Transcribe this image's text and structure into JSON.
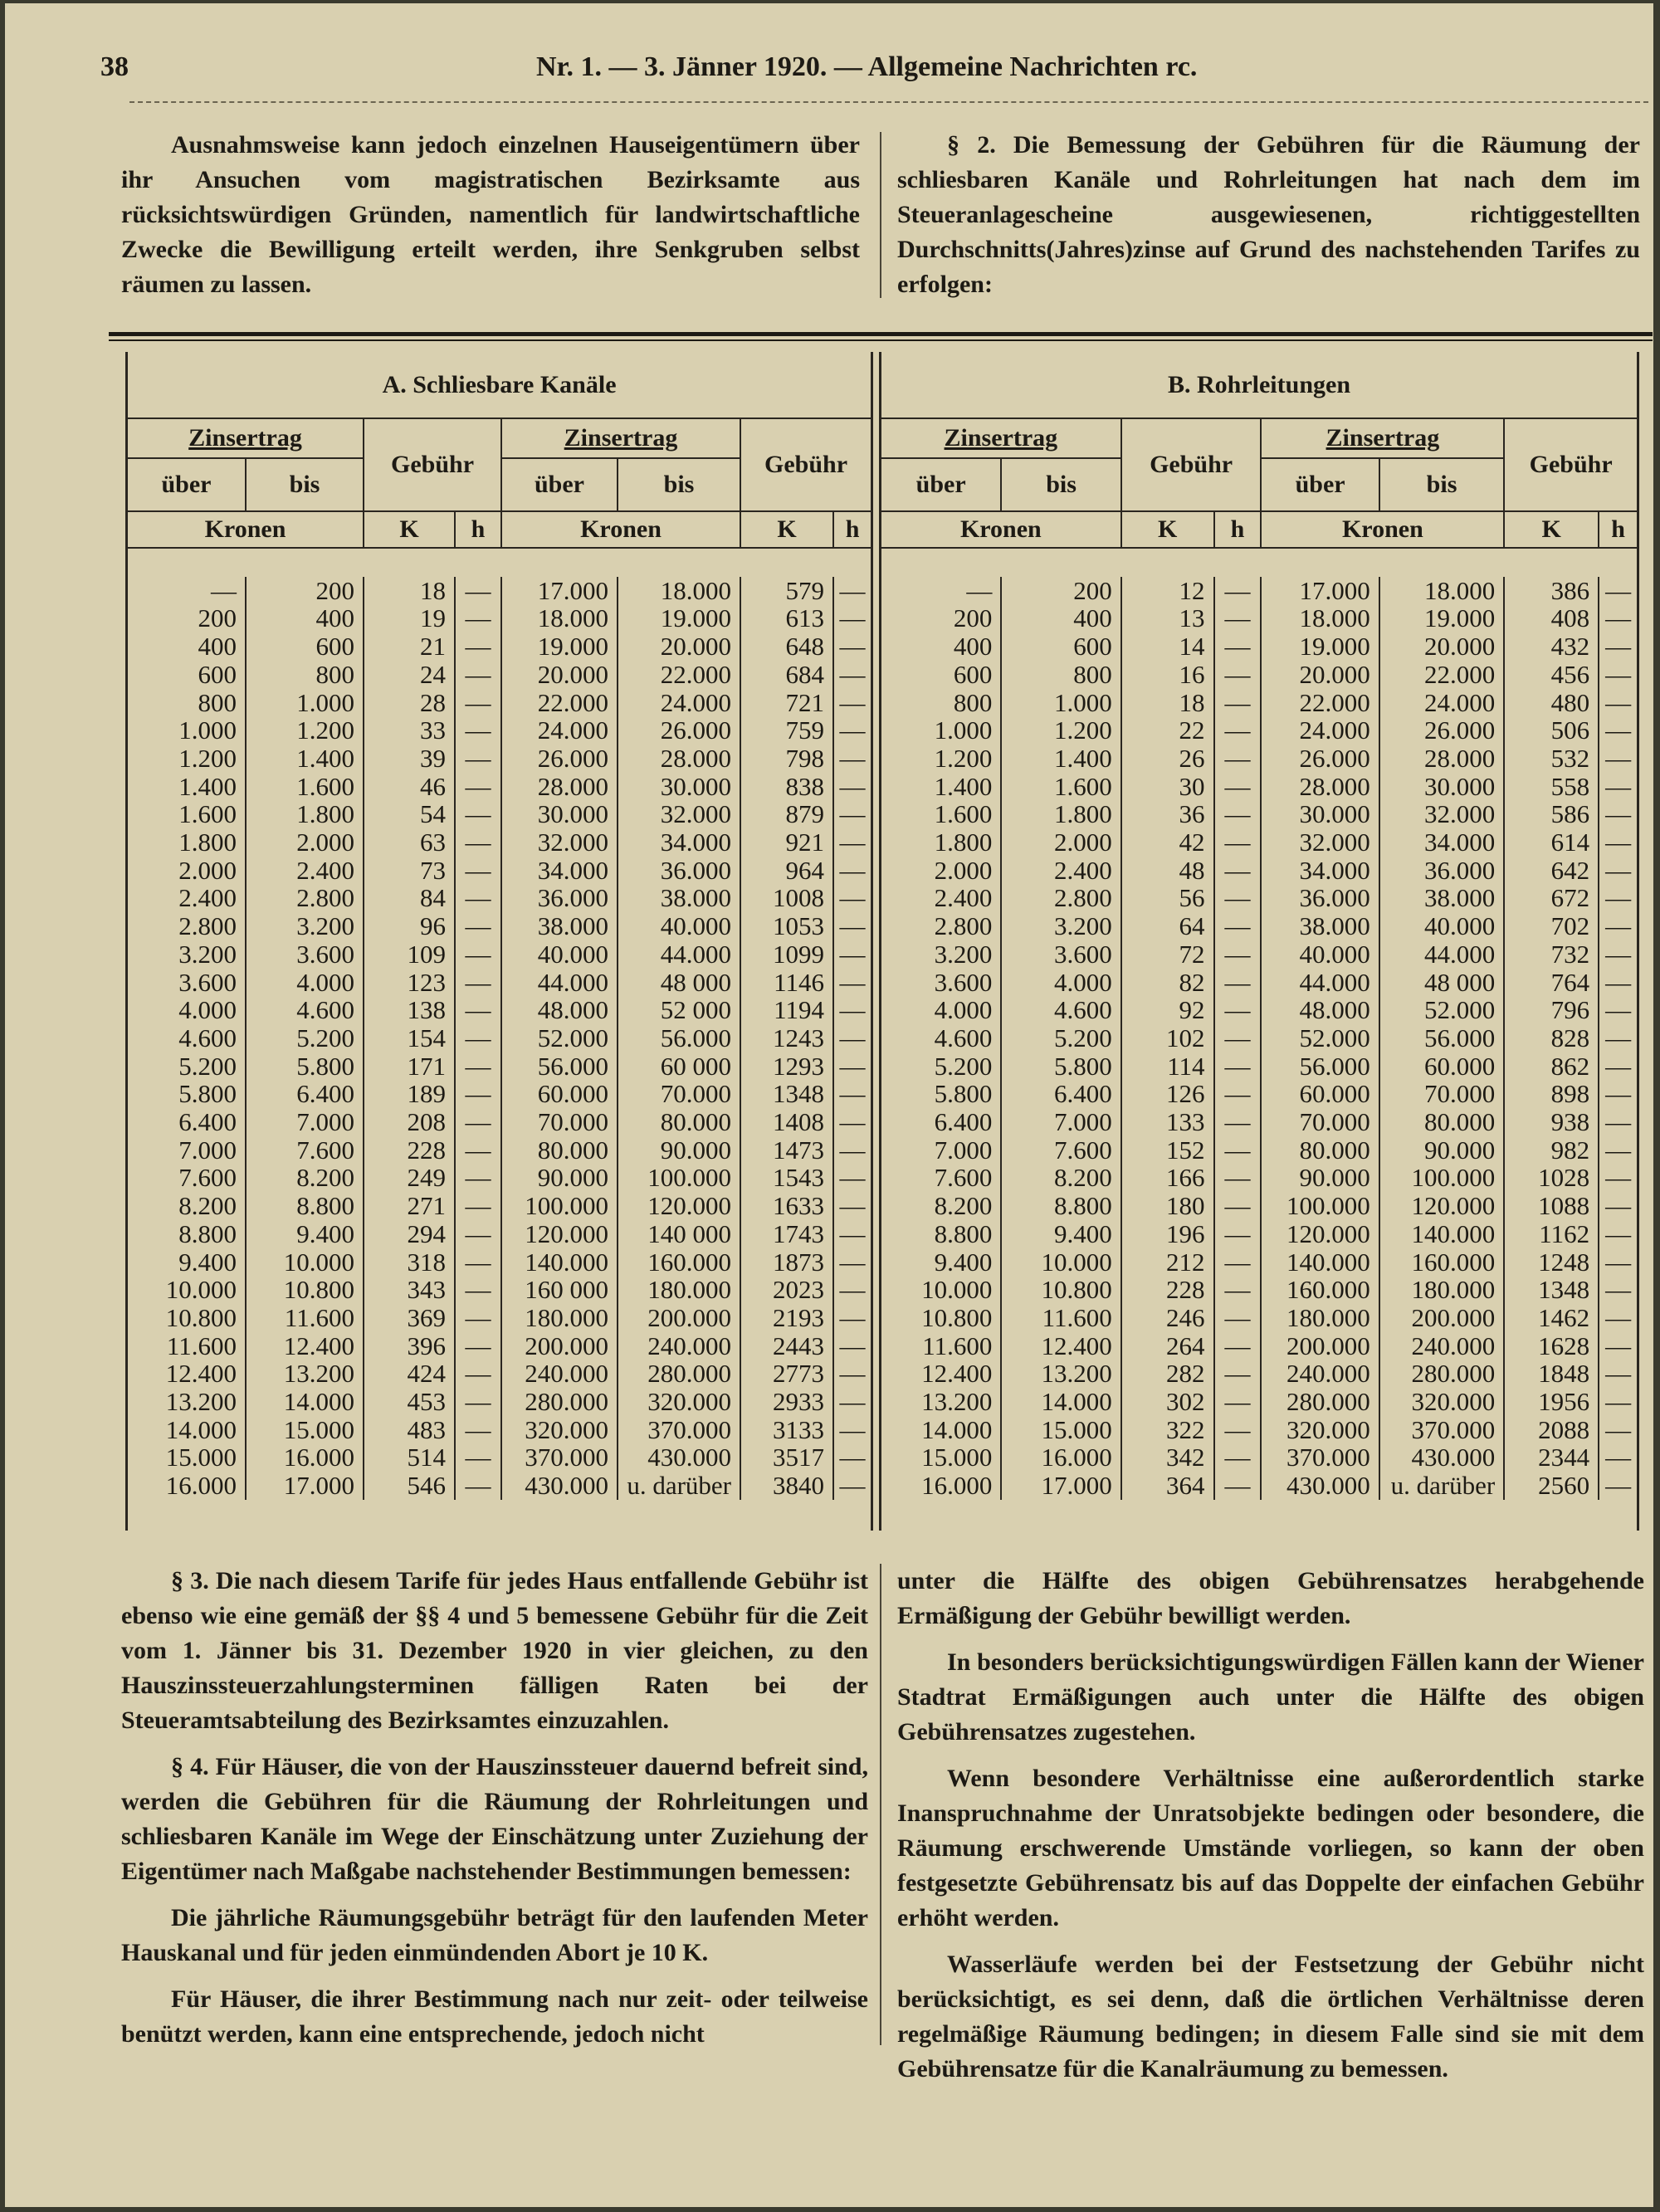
{
  "header": {
    "page": "38",
    "title": "Nr. 1. — 3. Jänner 1920. — Allgemeine Nachrichten rc."
  },
  "intro": {
    "left": "Ausnahmsweise kann jedoch einzelnen Hauseigentümern über ihr Ansuchen vom magistratischen Bezirksamte aus rücksichtswürdigen Gründen, namentlich für landwirtschaftliche Zwecke die Bewilligung erteilt werden, ihre Senkgruben selbst räumen zu lassen.",
    "right": "§ 2. Die Bemessung der Gebühren für die Räumung der schliesbaren Kanäle und Rohrleitungen hat nach dem im Steueranlagescheine ausgewiesenen, richtiggestellten Durchschnitts(Jahres)zinse auf Grund des nachstehenden Tarifes zu erfolgen:"
  },
  "tables": [
    {
      "title": "A. Schliesbare Kanäle",
      "income": "Zinsertrag",
      "fee": "Gebühr",
      "from": "über",
      "to": "bis",
      "currency": "Kronen",
      "k": "K",
      "h": "h",
      "rows": [
        [
          "—",
          "200",
          "18",
          "—",
          "17.000",
          "18.000",
          "579",
          "—"
        ],
        [
          "200",
          "400",
          "19",
          "—",
          "18.000",
          "19.000",
          "613",
          "—"
        ],
        [
          "400",
          "600",
          "21",
          "—",
          "19.000",
          "20.000",
          "648",
          "—"
        ],
        [
          "600",
          "800",
          "24",
          "—",
          "20.000",
          "22.000",
          "684",
          "—"
        ],
        [
          "800",
          "1.000",
          "28",
          "—",
          "22.000",
          "24.000",
          "721",
          "—"
        ],
        [
          "1.000",
          "1.200",
          "33",
          "—",
          "24.000",
          "26.000",
          "759",
          "—"
        ],
        [
          "1.200",
          "1.400",
          "39",
          "—",
          "26.000",
          "28.000",
          "798",
          "—"
        ],
        [
          "1.400",
          "1.600",
          "46",
          "—",
          "28.000",
          "30.000",
          "838",
          "—"
        ],
        [
          "1.600",
          "1.800",
          "54",
          "—",
          "30.000",
          "32.000",
          "879",
          "—"
        ],
        [
          "1.800",
          "2.000",
          "63",
          "—",
          "32.000",
          "34.000",
          "921",
          "—"
        ],
        [
          "2.000",
          "2.400",
          "73",
          "—",
          "34.000",
          "36.000",
          "964",
          "—"
        ],
        [
          "2.400",
          "2.800",
          "84",
          "—",
          "36.000",
          "38.000",
          "1008",
          "—"
        ],
        [
          "2.800",
          "3.200",
          "96",
          "—",
          "38.000",
          "40.000",
          "1053",
          "—"
        ],
        [
          "3.200",
          "3.600",
          "109",
          "—",
          "40.000",
          "44.000",
          "1099",
          "—"
        ],
        [
          "3.600",
          "4.000",
          "123",
          "—",
          "44.000",
          "48 000",
          "1146",
          "—"
        ],
        [
          "4.000",
          "4.600",
          "138",
          "—",
          "48.000",
          "52 000",
          "1194",
          "—"
        ],
        [
          "4.600",
          "5.200",
          "154",
          "—",
          "52.000",
          "56.000",
          "1243",
          "—"
        ],
        [
          "5.200",
          "5.800",
          "171",
          "—",
          "56.000",
          "60 000",
          "1293",
          "—"
        ],
        [
          "5.800",
          "6.400",
          "189",
          "—",
          "60.000",
          "70.000",
          "1348",
          "—"
        ],
        [
          "6.400",
          "7.000",
          "208",
          "—",
          "70.000",
          "80.000",
          "1408",
          "—"
        ],
        [
          "7.000",
          "7.600",
          "228",
          "—",
          "80.000",
          "90.000",
          "1473",
          "—"
        ],
        [
          "7.600",
          "8.200",
          "249",
          "—",
          "90.000",
          "100.000",
          "1543",
          "—"
        ],
        [
          "8.200",
          "8.800",
          "271",
          "—",
          "100.000",
          "120.000",
          "1633",
          "—"
        ],
        [
          "8.800",
          "9.400",
          "294",
          "—",
          "120.000",
          "140 000",
          "1743",
          "—"
        ],
        [
          "9.400",
          "10.000",
          "318",
          "—",
          "140.000",
          "160.000",
          "1873",
          "—"
        ],
        [
          "10.000",
          "10.800",
          "343",
          "—",
          "160 000",
          "180.000",
          "2023",
          "—"
        ],
        [
          "10.800",
          "11.600",
          "369",
          "—",
          "180.000",
          "200.000",
          "2193",
          "—"
        ],
        [
          "11.600",
          "12.400",
          "396",
          "—",
          "200.000",
          "240.000",
          "2443",
          "—"
        ],
        [
          "12.400",
          "13.200",
          "424",
          "—",
          "240.000",
          "280.000",
          "2773",
          "—"
        ],
        [
          "13.200",
          "14.000",
          "453",
          "—",
          "280.000",
          "320.000",
          "2933",
          "—"
        ],
        [
          "14.000",
          "15.000",
          "483",
          "—",
          "320.000",
          "370.000",
          "3133",
          "—"
        ],
        [
          "15.000",
          "16.000",
          "514",
          "—",
          "370.000",
          "430.000",
          "3517",
          "—"
        ],
        [
          "16.000",
          "17.000",
          "546",
          "—",
          "430.000",
          "u. darüber",
          "3840",
          "—"
        ]
      ]
    },
    {
      "title": "B. Rohrleitungen",
      "income": "Zinsertrag",
      "fee": "Gebühr",
      "from": "über",
      "to": "bis",
      "currency": "Kronen",
      "k": "K",
      "h": "h",
      "rows": [
        [
          "—",
          "200",
          "12",
          "—",
          "17.000",
          "18.000",
          "386",
          "—"
        ],
        [
          "200",
          "400",
          "13",
          "—",
          "18.000",
          "19.000",
          "408",
          "—"
        ],
        [
          "400",
          "600",
          "14",
          "—",
          "19.000",
          "20.000",
          "432",
          "—"
        ],
        [
          "600",
          "800",
          "16",
          "—",
          "20.000",
          "22.000",
          "456",
          "—"
        ],
        [
          "800",
          "1.000",
          "18",
          "—",
          "22.000",
          "24.000",
          "480",
          "—"
        ],
        [
          "1.000",
          "1.200",
          "22",
          "—",
          "24.000",
          "26.000",
          "506",
          "—"
        ],
        [
          "1.200",
          "1.400",
          "26",
          "—",
          "26.000",
          "28.000",
          "532",
          "—"
        ],
        [
          "1.400",
          "1.600",
          "30",
          "—",
          "28.000",
          "30.000",
          "558",
          "—"
        ],
        [
          "1.600",
          "1.800",
          "36",
          "—",
          "30.000",
          "32.000",
          "586",
          "—"
        ],
        [
          "1.800",
          "2.000",
          "42",
          "—",
          "32.000",
          "34.000",
          "614",
          "—"
        ],
        [
          "2.000",
          "2.400",
          "48",
          "—",
          "34.000",
          "36.000",
          "642",
          "—"
        ],
        [
          "2.400",
          "2.800",
          "56",
          "—",
          "36.000",
          "38.000",
          "672",
          "—"
        ],
        [
          "2.800",
          "3.200",
          "64",
          "—",
          "38.000",
          "40.000",
          "702",
          "—"
        ],
        [
          "3.200",
          "3.600",
          "72",
          "—",
          "40.000",
          "44.000",
          "732",
          "—"
        ],
        [
          "3.600",
          "4.000",
          "82",
          "—",
          "44.000",
          "48 000",
          "764",
          "—"
        ],
        [
          "4.000",
          "4.600",
          "92",
          "—",
          "48.000",
          "52.000",
          "796",
          "—"
        ],
        [
          "4.600",
          "5.200",
          "102",
          "—",
          "52.000",
          "56.000",
          "828",
          "—"
        ],
        [
          "5.200",
          "5.800",
          "114",
          "—",
          "56.000",
          "60.000",
          "862",
          "—"
        ],
        [
          "5.800",
          "6.400",
          "126",
          "—",
          "60.000",
          "70.000",
          "898",
          "—"
        ],
        [
          "6.400",
          "7.000",
          "133",
          "—",
          "70.000",
          "80.000",
          "938",
          "—"
        ],
        [
          "7.000",
          "7.600",
          "152",
          "—",
          "80.000",
          "90.000",
          "982",
          "—"
        ],
        [
          "7.600",
          "8.200",
          "166",
          "—",
          "90.000",
          "100.000",
          "1028",
          "—"
        ],
        [
          "8.200",
          "8.800",
          "180",
          "—",
          "100.000",
          "120.000",
          "1088",
          "—"
        ],
        [
          "8.800",
          "9.400",
          "196",
          "—",
          "120.000",
          "140.000",
          "1162",
          "—"
        ],
        [
          "9.400",
          "10.000",
          "212",
          "—",
          "140.000",
          "160.000",
          "1248",
          "—"
        ],
        [
          "10.000",
          "10.800",
          "228",
          "—",
          "160.000",
          "180.000",
          "1348",
          "—"
        ],
        [
          "10.800",
          "11.600",
          "246",
          "—",
          "180.000",
          "200.000",
          "1462",
          "—"
        ],
        [
          "11.600",
          "12.400",
          "264",
          "—",
          "200.000",
          "240.000",
          "1628",
          "—"
        ],
        [
          "12.400",
          "13.200",
          "282",
          "—",
          "240.000",
          "280.000",
          "1848",
          "—"
        ],
        [
          "13.200",
          "14.000",
          "302",
          "—",
          "280.000",
          "320.000",
          "1956",
          "—"
        ],
        [
          "14.000",
          "15.000",
          "322",
          "—",
          "320.000",
          "370.000",
          "2088",
          "—"
        ],
        [
          "15.000",
          "16.000",
          "342",
          "—",
          "370.000",
          "430.000",
          "2344",
          "—"
        ],
        [
          "16.000",
          "17.000",
          "364",
          "—",
          "430.000",
          "u. darüber",
          "2560",
          "—"
        ]
      ]
    }
  ],
  "body": {
    "left": [
      "§ 3. Die nach diesem Tarife für jedes Haus entfallende Gebühr ist ebenso wie eine gemäß der §§ 4 und 5 bemessene Gebühr für die Zeit vom 1. Jänner bis 31. Dezember 1920 in vier gleichen, zu den Hauszinssteuerzahlungsterminen fälligen Raten bei der Steueramtsabteilung des Bezirksamtes einzuzahlen.",
      "§ 4. Für Häuser, die von der Hauszinssteuer dauernd befreit sind, werden die Gebühren für die Räumung der Rohrleitungen und schliesbaren Kanäle im Wege der Einschätzung unter Zuziehung der Eigentümer nach Maßgabe nachstehender Bestimmungen bemessen:",
      "Die jährliche Räumungsgebühr beträgt für den laufenden Meter Hauskanal und für jeden einmündenden Abort je 10 K.",
      "Für Häuser, die ihrer Bestimmung nach nur zeit- oder teilweise benützt werden, kann eine entsprechende, jedoch nicht"
    ],
    "right": [
      "unter die Hälfte des obigen Gebührensatzes herabgehende Ermäßigung der Gebühr bewilligt werden.",
      "In besonders berücksichtigungswürdigen Fällen kann der Wiener Stadtrat Ermäßigungen auch unter die Hälfte des obigen Gebührensatzes zugestehen.",
      "Wenn besondere Verhältnisse eine außerordentlich starke Inanspruchnahme der Unratsobjekte bedingen oder besondere, die Räumung erschwerende Umstände vorliegen, so kann der oben festgesetzte Gebührensatz bis auf das Doppelte der einfachen Gebühr erhöht werden.",
      "Wasserläufe werden bei der Festsetzung der Gebühr nicht berücksichtigt, es sei denn, daß die örtlichen Verhältnisse deren regelmäßige Räumung bedingen; in diesem Falle sind sie mit dem Gebührensatze für die Kanalräumung zu bemessen."
    ]
  }
}
